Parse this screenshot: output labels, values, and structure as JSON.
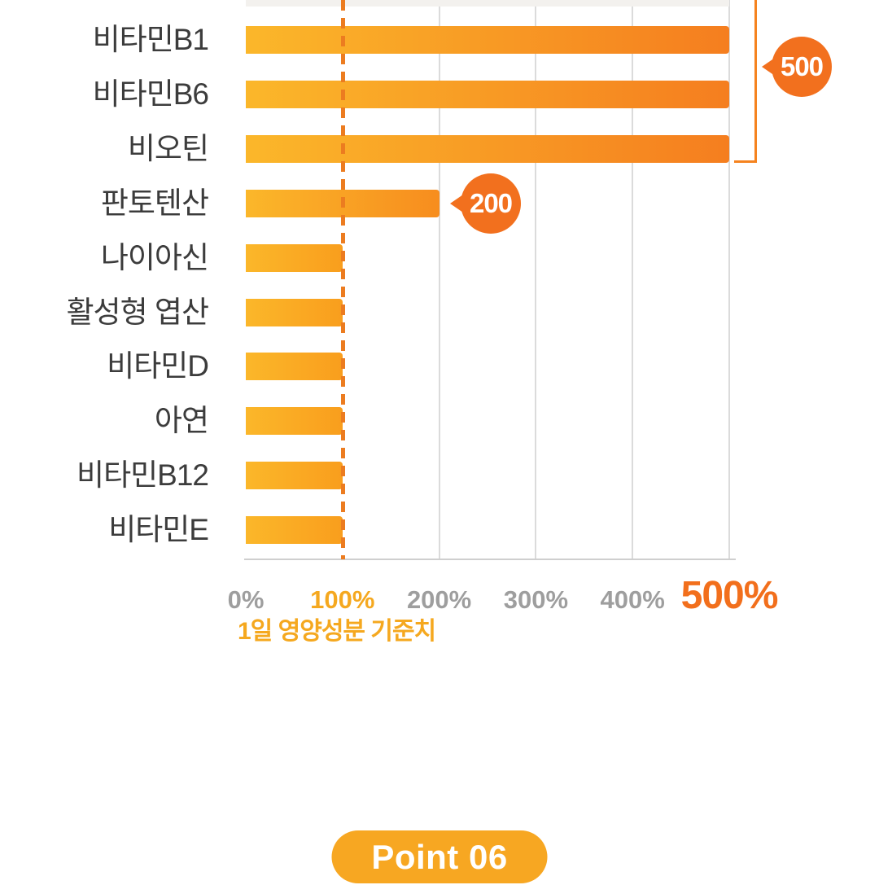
{
  "chart_data": {
    "type": "bar",
    "orientation": "horizontal",
    "categories": [
      "비타민B1",
      "비타민B6",
      "비오틴",
      "판토텐산",
      "나이아신",
      "활성형 엽산",
      "비타민D",
      "아연",
      "비타민B12",
      "비타민E"
    ],
    "values": [
      500,
      500,
      500,
      200,
      100,
      100,
      100,
      100,
      100,
      100
    ],
    "unit": "%",
    "xlim": [
      0,
      500
    ],
    "x_ticks": [
      {
        "label": "0%",
        "value": 0,
        "style": "grey"
      },
      {
        "label": "100%",
        "value": 100,
        "style": "amber"
      },
      {
        "label": "200%",
        "value": 200,
        "style": "grey"
      },
      {
        "label": "300%",
        "value": 300,
        "style": "grey"
      },
      {
        "label": "400%",
        "value": 400,
        "style": "grey"
      },
      {
        "label": "500%",
        "value": 500,
        "style": "orange-large"
      }
    ],
    "xlabel": "1일 영양성분 기준치",
    "grid": true,
    "reference_line_value": 100,
    "annotations": [
      {
        "text": "500",
        "type": "bracket-callout",
        "targets": [
          "비타민B1",
          "비타민B6",
          "비오틴"
        ]
      },
      {
        "text": "200",
        "type": "callout",
        "target": "판토텐산"
      }
    ],
    "cutoff_top_row": true
  },
  "footer": {
    "badge_label": "Point 06"
  },
  "colors": {
    "bar_gradient_start": "#FBB72A",
    "bar_gradient_end_500": "#F57E1F",
    "bar_gradient_end_200": "#F78D1E",
    "bar_gradient_end_100": "#F99E1D",
    "callout_bubble": "#F2701E",
    "reference_line": "#EC7C20",
    "bracket": "#F5831F",
    "gridline": "#DBDBDB",
    "axis_line": "#CFCFCF",
    "category_label": "#3C3C3C",
    "tick_grey": "#9E9E9E",
    "tick_amber": "#F5A81F",
    "tick_orange": "#F26F1C",
    "xlabel_color": "#F5A81F",
    "badge_bg": "#F7A722",
    "badge_text": "#FFFFFF",
    "cutoff_bar": "#F3F1EE"
  }
}
